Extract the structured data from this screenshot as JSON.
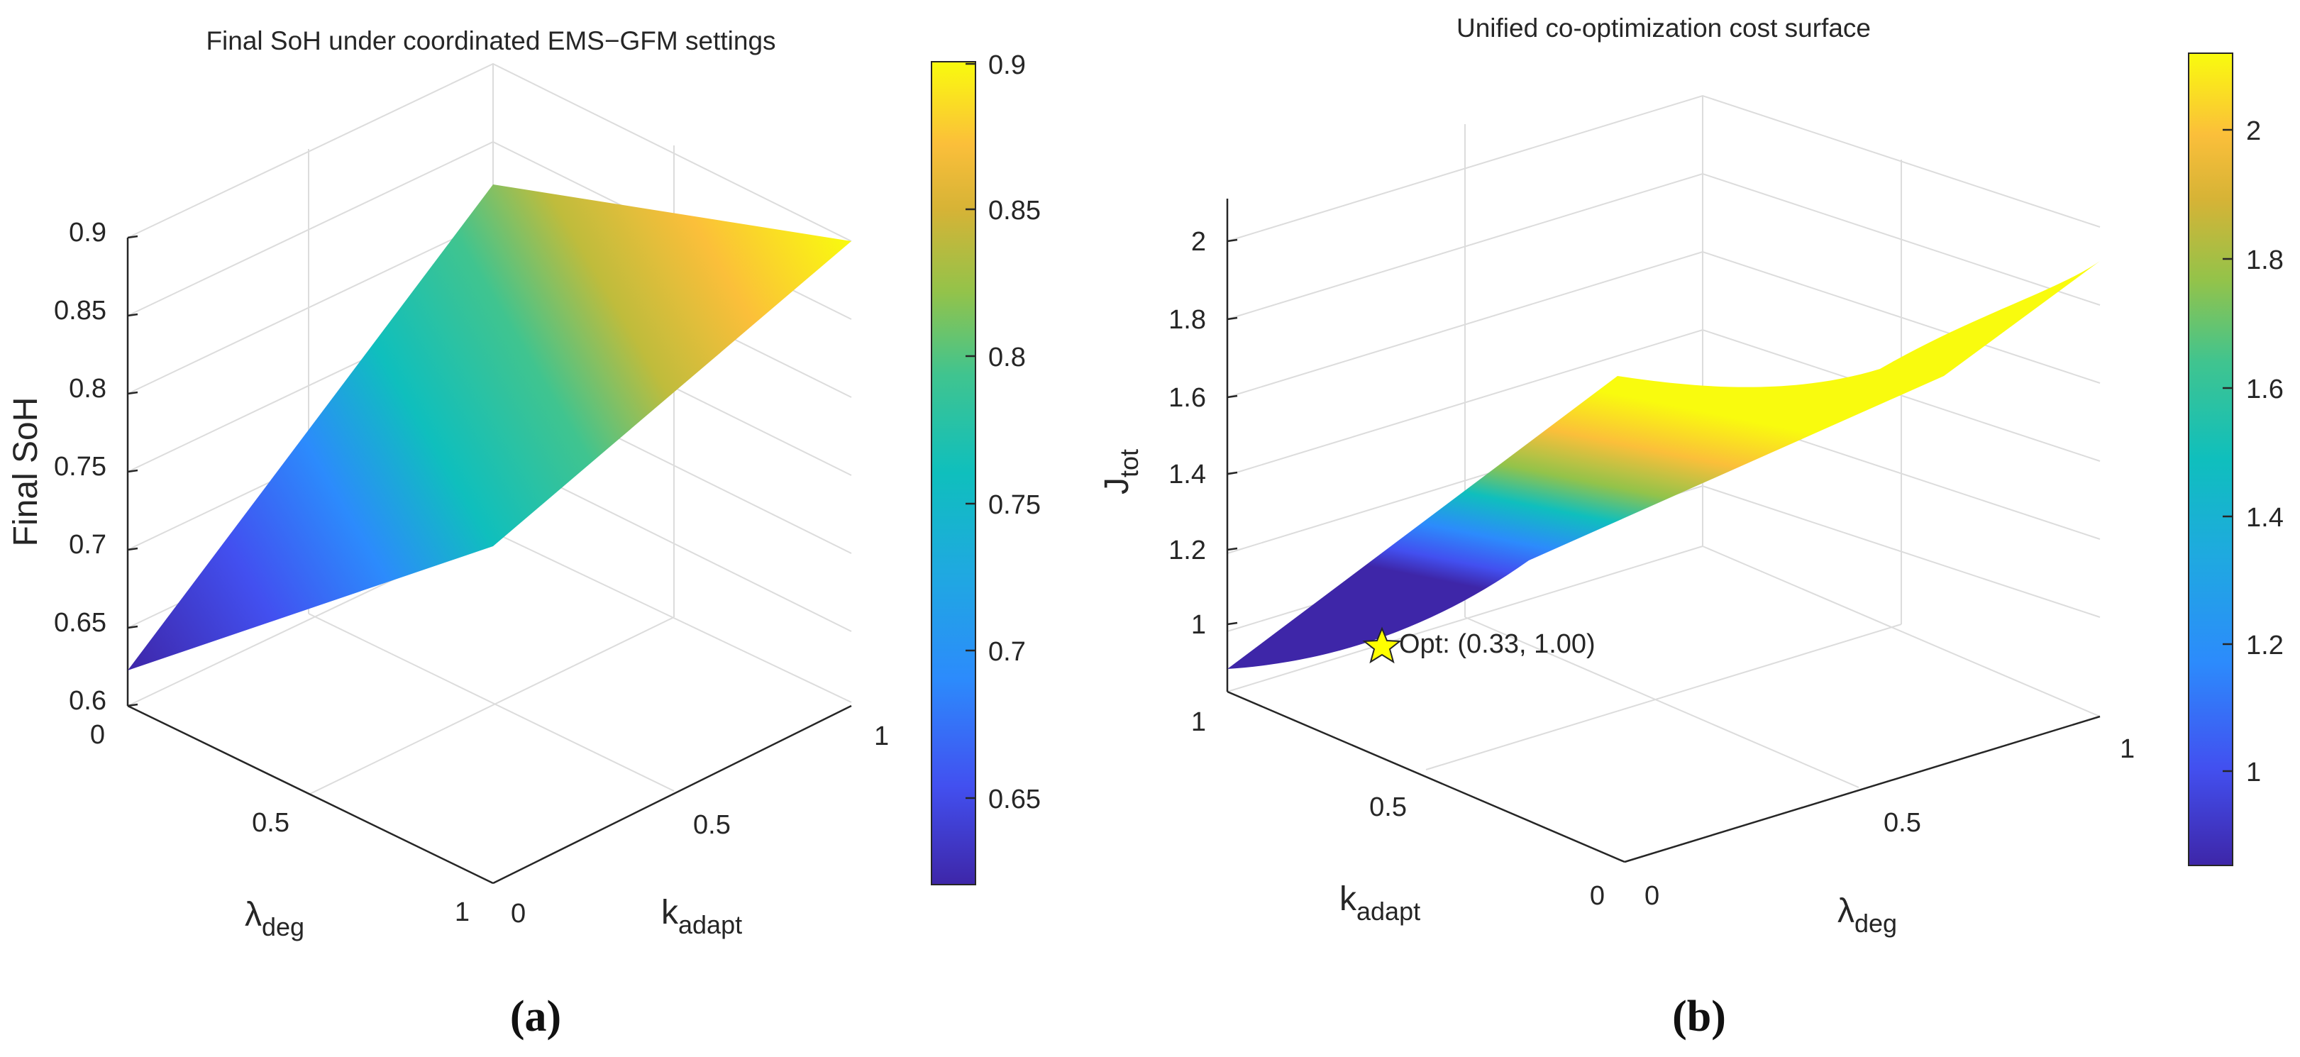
{
  "panels": [
    {
      "label": "(a)",
      "chart_data": {
        "type": "surface3d",
        "title": "Final SoH under coordinated EMS−GFM settings",
        "x_axis": {
          "label_main": "k",
          "label_sub": "adapt",
          "range": [
            0,
            1
          ],
          "ticks": [
            "0",
            "0.5",
            "1"
          ]
        },
        "y_axis": {
          "label_main": "λ",
          "label_sub": "deg",
          "range": [
            0,
            1
          ],
          "ticks": [
            "0",
            "0.5",
            "1"
          ]
        },
        "z_axis": {
          "label": "Final SoH",
          "range": [
            0.6,
            0.9
          ],
          "ticks": [
            "0.6",
            "0.65",
            "0.7",
            "0.75",
            "0.8",
            "0.85",
            "0.9"
          ]
        },
        "surface_corners": [
          {
            "k_adapt": 0,
            "lambda_deg": 0,
            "value": 0.7
          },
          {
            "k_adapt": 1,
            "lambda_deg": 0,
            "value": 0.9
          },
          {
            "k_adapt": 0,
            "lambda_deg": 1,
            "value": 0.62
          },
          {
            "k_adapt": 1,
            "lambda_deg": 1,
            "value": 0.88
          }
        ],
        "colorbar": {
          "range": [
            0.62,
            0.9
          ],
          "ticks": [
            "0.65",
            "0.7",
            "0.75",
            "0.8",
            "0.85",
            "0.9"
          ]
        },
        "colormap": "parula",
        "grid": true
      }
    },
    {
      "label": "(b)",
      "chart_data": {
        "type": "surface3d",
        "title": "Unified co-optimization cost surface",
        "x_axis": {
          "label_main": "λ",
          "label_sub": "deg",
          "range": [
            0,
            1
          ],
          "ticks": [
            "0",
            "0.5",
            "1"
          ]
        },
        "y_axis": {
          "label_main": "k",
          "label_sub": "adapt",
          "range": [
            0,
            1
          ],
          "ticks": [
            "0",
            "0.5",
            "1"
          ]
        },
        "z_axis": {
          "label_main": "J",
          "label_sub": "tot",
          "range": [
            0.85,
            2.15
          ],
          "ticks": [
            "1",
            "1.2",
            "1.4",
            "1.6",
            "1.8",
            "2"
          ]
        },
        "surface_corners": [
          {
            "lambda_deg": 0,
            "k_adapt": 1,
            "value": 0.88
          },
          {
            "lambda_deg": 0,
            "k_adapt": 0,
            "value": 1.7
          },
          {
            "lambda_deg": 1,
            "k_adapt": 1,
            "value": 1.42
          },
          {
            "lambda_deg": 1,
            "k_adapt": 0,
            "value": 2.1
          }
        ],
        "annotation": {
          "text": "Opt: (0.33, 1.00)",
          "lambda_deg": 0.33,
          "k_adapt": 1.0,
          "marker": "star",
          "marker_color": "#FFFF00"
        },
        "colorbar": {
          "range": [
            0.85,
            2.12
          ],
          "ticks": [
            "1",
            "1.2",
            "1.4",
            "1.6",
            "1.8",
            "2"
          ]
        },
        "colormap": "parula",
        "grid": true
      }
    }
  ]
}
